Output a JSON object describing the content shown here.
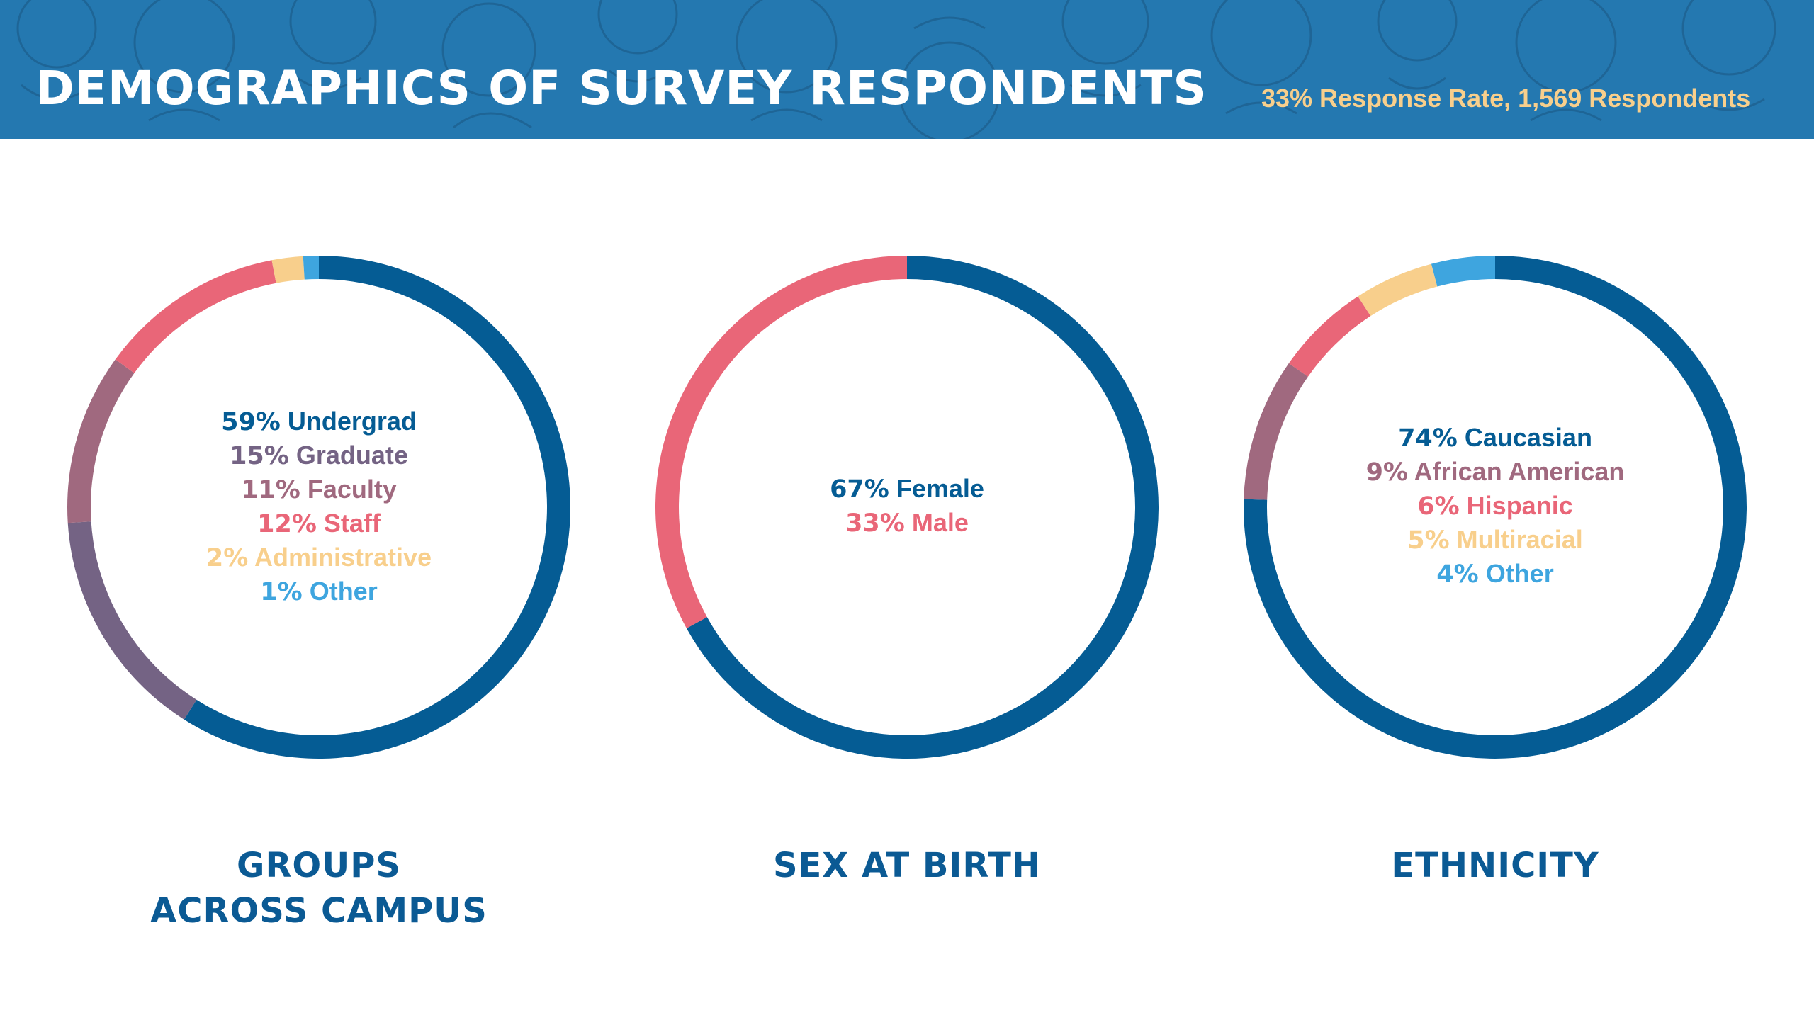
{
  "header": {
    "title": "DEMOGRAPHICS OF SURVEY RESPONDENTS",
    "subtitle": "33% Response Rate, 1,569 Respondents"
  },
  "colors": {
    "banner": "#2478b0",
    "title": "#ffffff",
    "subtitle": "#f8cf8c",
    "label": "#0b5a94"
  },
  "chart_data": [
    {
      "type": "pie",
      "title_lines": [
        "GROUPS",
        "ACROSS CAMPUS"
      ],
      "slices": [
        {
          "pct": "59%",
          "name": "Undergrad",
          "value": 59,
          "color": "#055c94"
        },
        {
          "pct": "15%",
          "name": "Graduate",
          "value": 15,
          "color": "#746384"
        },
        {
          "pct": "11%",
          "name": "Faculty",
          "value": 11,
          "color": "#a0697f"
        },
        {
          "pct": "12%",
          "name": "Staff",
          "value": 12,
          "color": "#e96678"
        },
        {
          "pct": "2%",
          "name": "Administrative",
          "value": 2,
          "color": "#f8cf8c"
        },
        {
          "pct": "1%",
          "name": "Other",
          "value": 1,
          "color": "#3ea5df"
        }
      ]
    },
    {
      "type": "pie",
      "title_lines": [
        "SEX AT BIRTH"
      ],
      "slices": [
        {
          "pct": "67%",
          "name": "Female",
          "value": 67,
          "color": "#055c94"
        },
        {
          "pct": "33%",
          "name": "Male",
          "value": 33,
          "color": "#e96678"
        }
      ]
    },
    {
      "type": "pie",
      "title_lines": [
        "ETHNICITY"
      ],
      "slices": [
        {
          "pct": "74%",
          "name": "Caucasian",
          "value": 74,
          "color": "#055c94"
        },
        {
          "pct": "9%",
          "name": "African American",
          "value": 9,
          "color": "#a0697f"
        },
        {
          "pct": "6%",
          "name": "Hispanic",
          "value": 6,
          "color": "#e96678"
        },
        {
          "pct": "5%",
          "name": "Multiracial",
          "value": 5,
          "color": "#f8cf8c"
        },
        {
          "pct": "4%",
          "name": "Other",
          "value": 4,
          "color": "#3ea5df"
        }
      ]
    }
  ]
}
